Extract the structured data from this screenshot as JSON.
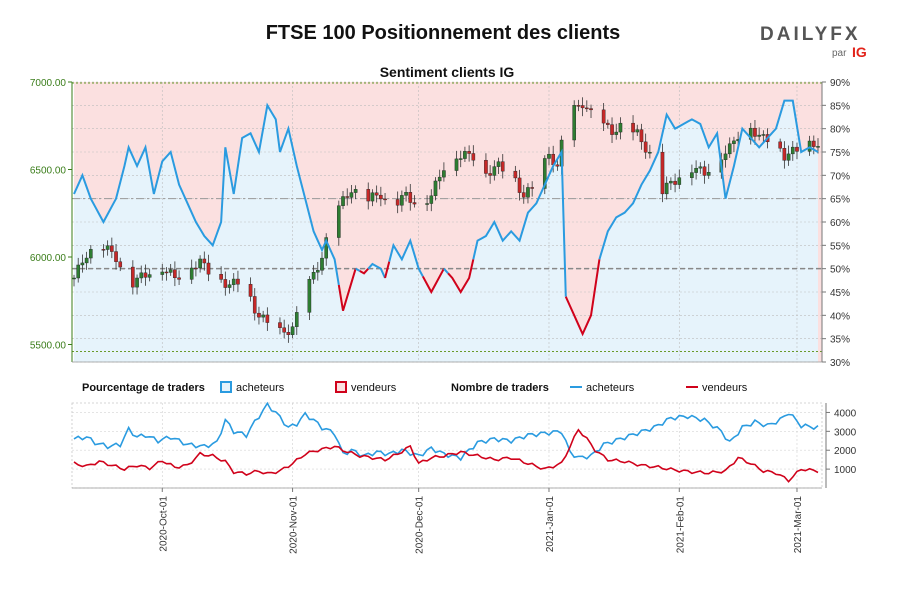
{
  "title": "FTSE 100 Positionnement des clients",
  "subtitle": "Sentiment clients IG",
  "brand": {
    "name": "DAILYFX",
    "sub": "par",
    "partner": "IG"
  },
  "legend": {
    "pct_title": "Pourcentage de traders",
    "pct_buyers": "acheteurs",
    "pct_sellers": "vendeurs",
    "count_title": "Nombre de traders",
    "count_buyers": "acheteurs",
    "count_sellers": "vendeurs"
  },
  "colors": {
    "buyers_line": "#2a9be0",
    "buyers_fill": "#e6f3fb",
    "sellers_line": "#d0021b",
    "sellers_fill": "#fbe0e0",
    "candle_up": "#2e7d32",
    "candle_down": "#c62828",
    "price_axis": "#3a7d1a"
  },
  "chart_data": [
    {
      "type": "candlestick",
      "name": "price",
      "y_ticks": [
        "7000.00",
        "6500.00",
        "6000.00",
        "5500.00"
      ],
      "ylim": [
        5400,
        7000
      ],
      "right_ticks": [
        "90%",
        "85%",
        "80%",
        "75%",
        "70%",
        "65%",
        "60%",
        "55%",
        "50%",
        "45%",
        "40%",
        "35%",
        "30%"
      ],
      "right_lim": [
        30,
        90
      ],
      "x_ticks": [
        "2020-Oct-01",
        "2020-Nov-01",
        "2020-Dec-01",
        "2021-Jan-01",
        "2021-Feb-01",
        "2021-Mar-01"
      ],
      "tick_days": [
        21,
        52,
        82,
        113,
        144,
        172
      ],
      "x_range": [
        0,
        177
      ],
      "price_keys": [
        [
          0,
          5880
        ],
        [
          3,
          6020
        ],
        [
          7,
          6060
        ],
        [
          10,
          6000
        ],
        [
          13,
          5840
        ],
        [
          17,
          5900
        ],
        [
          20,
          5960
        ],
        [
          24,
          5880
        ],
        [
          27,
          5940
        ],
        [
          30,
          5970
        ],
        [
          34,
          5880
        ],
        [
          37,
          5840
        ],
        [
          40,
          5860
        ],
        [
          43,
          5700
        ],
        [
          48,
          5560
        ],
        [
          52,
          5590
        ],
        [
          55,
          5800
        ],
        [
          59,
          6000
        ],
        [
          62,
          6250
        ],
        [
          66,
          6390
        ],
        [
          69,
          6320
        ],
        [
          73,
          6360
        ],
        [
          75,
          6290
        ],
        [
          79,
          6350
        ],
        [
          82,
          6300
        ],
        [
          85,
          6350
        ],
        [
          88,
          6520
        ],
        [
          91,
          6580
        ],
        [
          95,
          6580
        ],
        [
          98,
          6480
        ],
        [
          101,
          6520
        ],
        [
          104,
          6480
        ],
        [
          107,
          6350
        ],
        [
          110,
          6410
        ],
        [
          113,
          6600
        ],
        [
          115,
          6500
        ],
        [
          117,
          6800
        ],
        [
          121,
          6880
        ],
        [
          124,
          6780
        ],
        [
          128,
          6720
        ],
        [
          131,
          6750
        ],
        [
          134,
          6700
        ],
        [
          138,
          6550
        ],
        [
          140,
          6380
        ],
        [
          144,
          6460
        ],
        [
          147,
          6510
        ],
        [
          150,
          6480
        ],
        [
          153,
          6560
        ],
        [
          156,
          6620
        ],
        [
          160,
          6780
        ],
        [
          163,
          6680
        ],
        [
          166,
          6680
        ],
        [
          169,
          6580
        ],
        [
          173,
          6620
        ],
        [
          176,
          6650
        ]
      ],
      "buyers_pct_keys": [
        [
          0,
          66
        ],
        [
          2,
          70
        ],
        [
          4,
          65
        ],
        [
          7,
          60
        ],
        [
          10,
          65
        ],
        [
          12,
          72
        ],
        [
          13,
          76
        ],
        [
          15,
          72
        ],
        [
          17,
          76
        ],
        [
          19,
          66
        ],
        [
          21,
          73
        ],
        [
          23,
          75
        ],
        [
          25,
          68
        ],
        [
          27,
          64
        ],
        [
          29,
          60
        ],
        [
          31,
          57
        ],
        [
          33,
          55
        ],
        [
          35,
          60
        ],
        [
          36,
          76
        ],
        [
          38,
          66
        ],
        [
          40,
          78
        ],
        [
          42,
          79
        ],
        [
          44,
          75
        ],
        [
          46,
          85
        ],
        [
          48,
          82
        ],
        [
          49,
          75
        ],
        [
          51,
          80
        ],
        [
          53,
          72
        ],
        [
          55,
          65
        ],
        [
          57,
          58
        ],
        [
          59,
          54
        ],
        [
          60,
          56
        ],
        [
          62,
          52
        ],
        [
          64,
          41
        ],
        [
          65,
          44
        ],
        [
          67,
          50
        ],
        [
          69,
          49
        ],
        [
          71,
          51
        ],
        [
          73,
          50
        ],
        [
          74,
          48
        ],
        [
          76,
          55
        ],
        [
          78,
          52
        ],
        [
          80,
          56
        ],
        [
          82,
          50
        ],
        [
          85,
          45
        ],
        [
          88,
          50
        ],
        [
          90,
          48
        ],
        [
          92,
          45
        ],
        [
          94,
          48
        ],
        [
          96,
          56
        ],
        [
          98,
          57
        ],
        [
          100,
          60
        ],
        [
          102,
          56
        ],
        [
          104,
          58
        ],
        [
          106,
          56
        ],
        [
          108,
          62
        ],
        [
          110,
          64
        ],
        [
          112,
          68
        ],
        [
          114,
          72
        ],
        [
          116,
          75
        ],
        [
          117,
          44
        ],
        [
          119,
          40
        ],
        [
          121,
          36
        ],
        [
          123,
          40
        ],
        [
          125,
          52
        ],
        [
          127,
          58
        ],
        [
          129,
          61
        ],
        [
          131,
          62
        ],
        [
          133,
          64
        ],
        [
          135,
          68
        ],
        [
          137,
          71
        ],
        [
          139,
          75
        ],
        [
          141,
          83
        ],
        [
          143,
          80
        ],
        [
          145,
          81
        ],
        [
          147,
          82
        ],
        [
          149,
          81
        ],
        [
          151,
          76
        ],
        [
          153,
          79
        ],
        [
          155,
          65
        ],
        [
          157,
          72
        ],
        [
          159,
          80
        ],
        [
          161,
          78
        ],
        [
          163,
          76
        ],
        [
          165,
          78
        ],
        [
          167,
          80
        ],
        [
          169,
          86
        ],
        [
          171,
          86
        ],
        [
          173,
          75
        ],
        [
          175,
          76
        ],
        [
          177,
          75
        ]
      ],
      "buyer_counts_keys": [
        [
          0,
          2600
        ],
        [
          3,
          2700
        ],
        [
          5,
          2400
        ],
        [
          8,
          2200
        ],
        [
          11,
          2300
        ],
        [
          13,
          3100
        ],
        [
          15,
          2700
        ],
        [
          17,
          2800
        ],
        [
          20,
          2500
        ],
        [
          23,
          2700
        ],
        [
          27,
          2300
        ],
        [
          31,
          2200
        ],
        [
          34,
          2400
        ],
        [
          36,
          3600
        ],
        [
          38,
          3000
        ],
        [
          41,
          2800
        ],
        [
          43,
          3500
        ],
        [
          46,
          4400
        ],
        [
          48,
          4000
        ],
        [
          51,
          3200
        ],
        [
          53,
          3400
        ],
        [
          55,
          3900
        ],
        [
          57,
          3600
        ],
        [
          59,
          3200
        ],
        [
          62,
          2900
        ],
        [
          64,
          1800
        ],
        [
          66,
          2000
        ],
        [
          69,
          1700
        ],
        [
          72,
          1900
        ],
        [
          75,
          1800
        ],
        [
          78,
          2000
        ],
        [
          82,
          1700
        ],
        [
          85,
          2100
        ],
        [
          88,
          1800
        ],
        [
          92,
          1600
        ],
        [
          96,
          2400
        ],
        [
          100,
          2600
        ],
        [
          104,
          2500
        ],
        [
          108,
          2800
        ],
        [
          112,
          2900
        ],
        [
          116,
          3000
        ],
        [
          118,
          1900
        ],
        [
          120,
          1600
        ],
        [
          123,
          1700
        ],
        [
          126,
          2300
        ],
        [
          130,
          2600
        ],
        [
          134,
          2900
        ],
        [
          138,
          3200
        ],
        [
          142,
          3700
        ],
        [
          146,
          3800
        ],
        [
          150,
          3600
        ],
        [
          154,
          3000
        ],
        [
          156,
          2400
        ],
        [
          159,
          3200
        ],
        [
          162,
          3500
        ],
        [
          165,
          3300
        ],
        [
          168,
          3600
        ],
        [
          170,
          4000
        ],
        [
          173,
          3300
        ],
        [
          177,
          3200
        ]
      ],
      "seller_counts_keys": [
        [
          0,
          1300
        ],
        [
          3,
          1150
        ],
        [
          6,
          1400
        ],
        [
          9,
          1200
        ],
        [
          12,
          1000
        ],
        [
          15,
          1200
        ],
        [
          18,
          1050
        ],
        [
          21,
          1450
        ],
        [
          24,
          1100
        ],
        [
          27,
          1200
        ],
        [
          30,
          1800
        ],
        [
          33,
          1700
        ],
        [
          36,
          1400
        ],
        [
          38,
          850
        ],
        [
          41,
          750
        ],
        [
          44,
          900
        ],
        [
          46,
          750
        ],
        [
          49,
          900
        ],
        [
          52,
          1300
        ],
        [
          55,
          1800
        ],
        [
          58,
          2000
        ],
        [
          62,
          2200
        ],
        [
          64,
          2000
        ],
        [
          68,
          1700
        ],
        [
          71,
          1600
        ],
        [
          74,
          1500
        ],
        [
          77,
          1800
        ],
        [
          80,
          2200
        ],
        [
          82,
          1300
        ],
        [
          85,
          1600
        ],
        [
          88,
          1700
        ],
        [
          92,
          1900
        ],
        [
          96,
          1700
        ],
        [
          100,
          1500
        ],
        [
          104,
          1600
        ],
        [
          108,
          1300
        ],
        [
          112,
          1000
        ],
        [
          116,
          1300
        ],
        [
          118,
          2200
        ],
        [
          120,
          3100
        ],
        [
          122,
          2600
        ],
        [
          124,
          2000
        ],
        [
          127,
          1500
        ],
        [
          131,
          1400
        ],
        [
          135,
          1200
        ],
        [
          139,
          1100
        ],
        [
          143,
          950
        ],
        [
          147,
          850
        ],
        [
          151,
          800
        ],
        [
          155,
          900
        ],
        [
          158,
          1600
        ],
        [
          161,
          1300
        ],
        [
          164,
          900
        ],
        [
          167,
          800
        ],
        [
          170,
          400
        ],
        [
          173,
          1000
        ],
        [
          177,
          900
        ]
      ]
    },
    {
      "type": "line",
      "name": "counts",
      "y_ticks": [
        "4000",
        "3000",
        "2000",
        "1000"
      ],
      "ylim": [
        0,
        4500
      ]
    }
  ]
}
